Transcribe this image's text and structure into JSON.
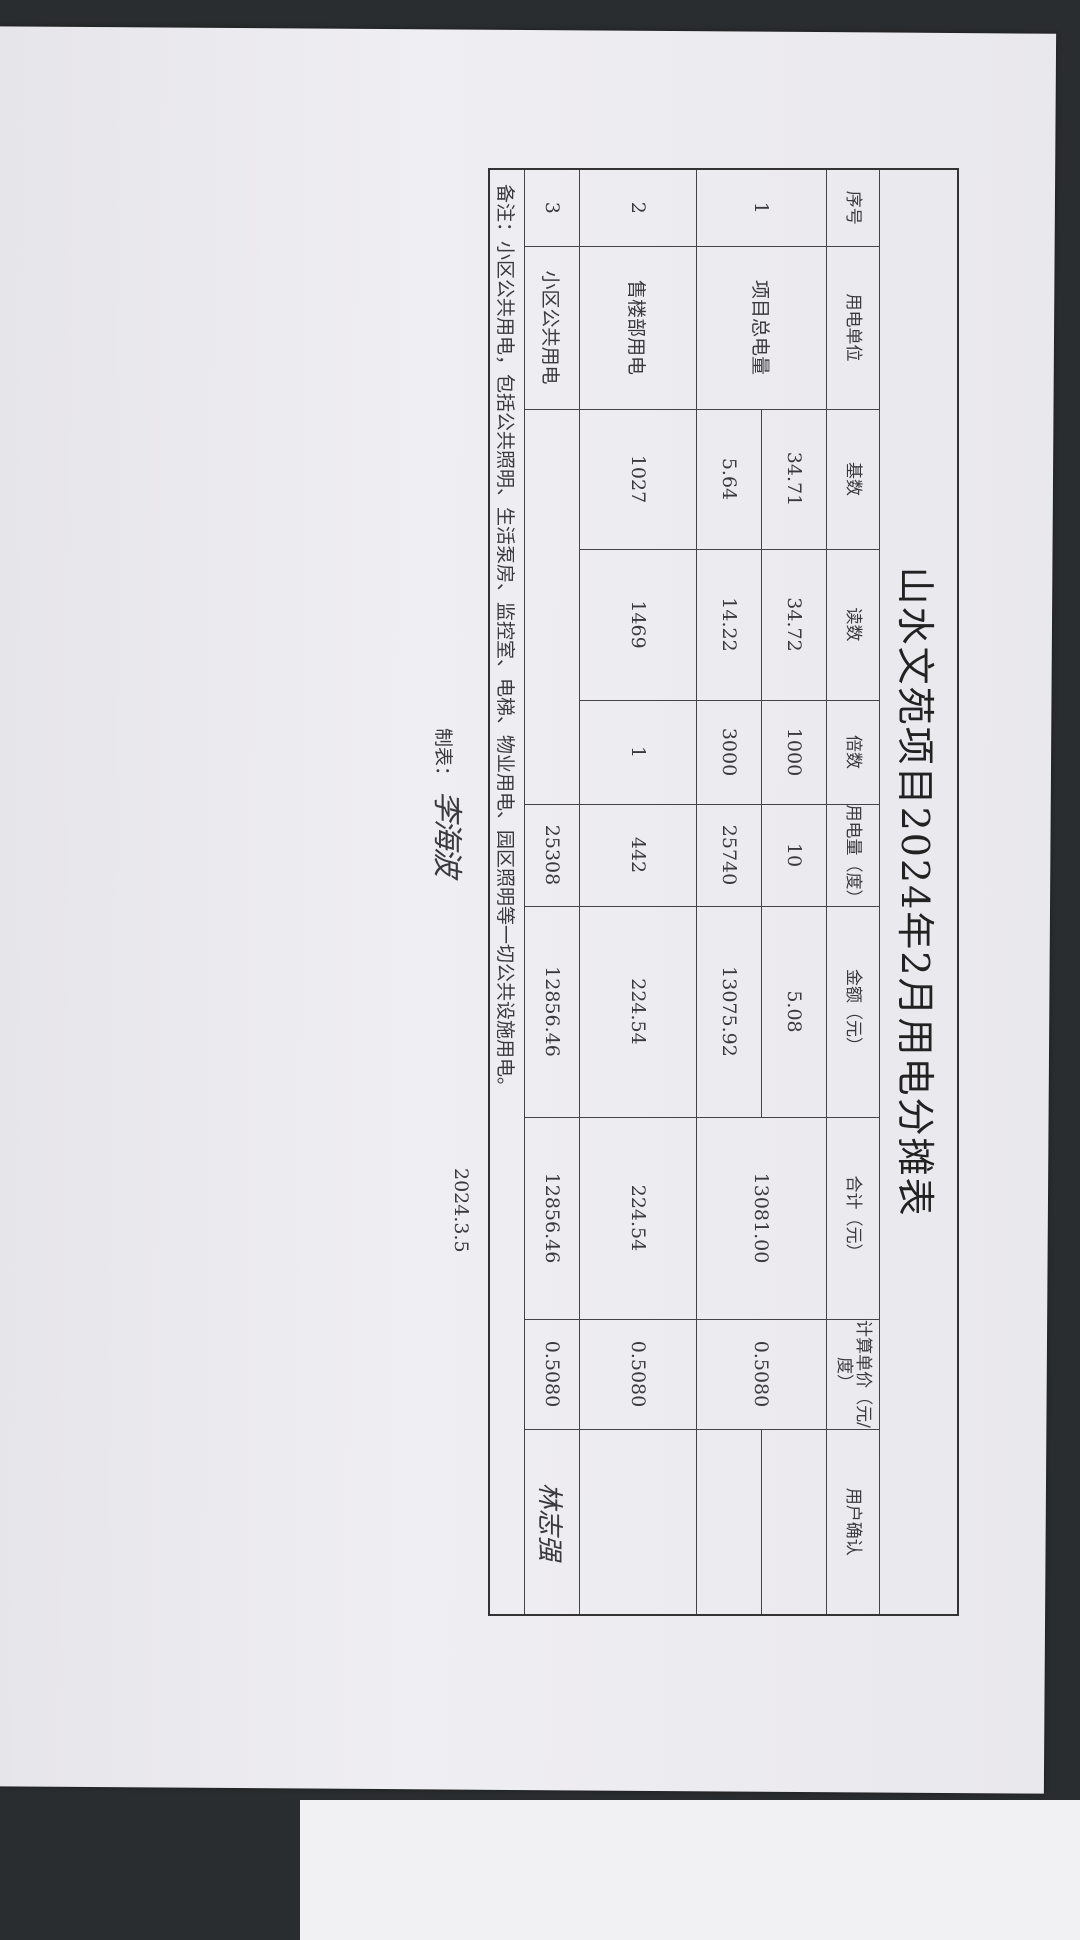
{
  "title": "山水文苑项目2024年2月用电分摊表",
  "headers": [
    "序号",
    "用电单位",
    "基数",
    "读数",
    "倍数",
    "用电量（度）",
    "金额（元）",
    "合计（元）",
    "计算单价（元/度）",
    "用户确认"
  ],
  "rows": [
    {
      "no": "1",
      "unit": "项目总电量",
      "sub": [
        {
          "base": "34.71",
          "read": "34.72",
          "mult": "1000",
          "kwh": "10",
          "amount": "5.08"
        },
        {
          "base": "5.64",
          "read": "14.22",
          "mult": "3000",
          "kwh": "25740",
          "amount": "13075.92"
        }
      ],
      "total": "13081.00",
      "price": "0.5080",
      "confirm": ""
    },
    {
      "no": "2",
      "unit": "售楼部用电",
      "base": "1027",
      "read": "1469",
      "mult": "1",
      "kwh": "442",
      "amount": "224.54",
      "total": "224.54",
      "price": "0.5080",
      "confirm": ""
    },
    {
      "no": "3",
      "unit": "小区公共用电",
      "base": "",
      "read": "",
      "mult": "",
      "kwh": "25308",
      "amount": "12856.46",
      "total": "12856.46",
      "price": "0.5080",
      "confirm": "林志强"
    }
  ],
  "note": "备注：小区公共用电，包括公共照明、生活泵房、监控室、电梯、物业用电、园区照明等一切公共设施用电。",
  "footer": {
    "maker_label": "制表：",
    "maker_signature": "李海波",
    "date": "2024.3.5"
  }
}
